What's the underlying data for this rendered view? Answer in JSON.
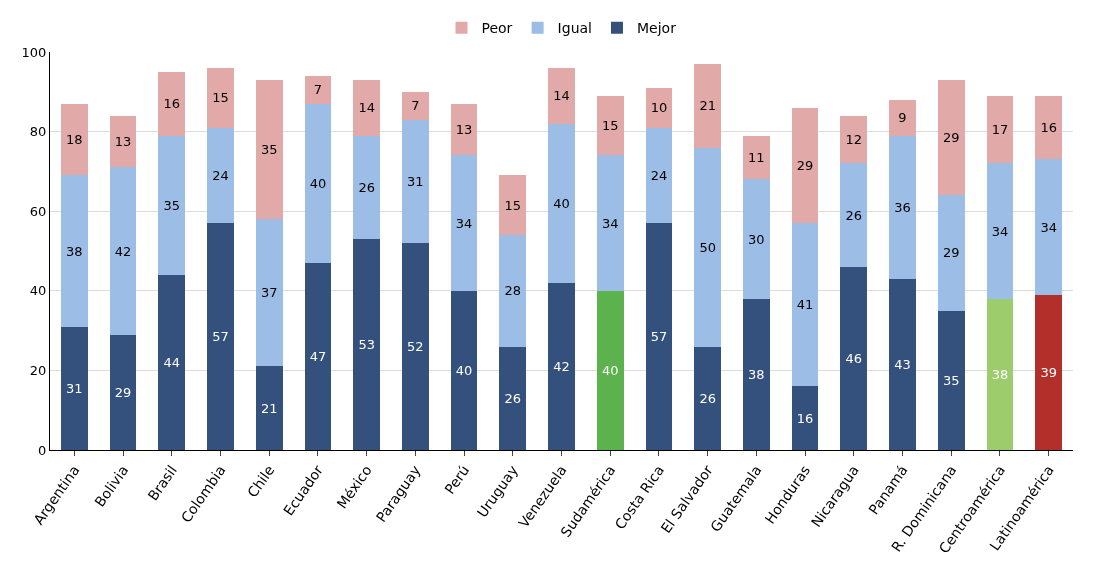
{
  "chart_data": {
    "type": "bar",
    "stacked": true,
    "data_labels": true,
    "grid": "y",
    "legend": "top",
    "ylim": [
      0,
      100
    ],
    "yticks": [
      0,
      20,
      40,
      60,
      80,
      100
    ],
    "categories": [
      "Argentina",
      "Bolivia",
      "Brasil",
      "Colombia",
      "Chile",
      "Ecuador",
      "México",
      "Paraguay",
      "Perú",
      "Uruguay",
      "Venezuela",
      "Sudamérica",
      "Costa Rica",
      "El Salvador",
      "Guatemala",
      "Honduras",
      "Nicaragua",
      "Panamá",
      "R. Dominicana",
      "Centroamérica",
      "Latinoamérica"
    ],
    "series": [
      {
        "name": "Mejor",
        "color": "#34507c",
        "colors": [
          "#34507c",
          "#34507c",
          "#34507c",
          "#34507c",
          "#34507c",
          "#34507c",
          "#34507c",
          "#34507c",
          "#34507c",
          "#34507c",
          "#34507c",
          "#5cb34d",
          "#34507c",
          "#34507c",
          "#34507c",
          "#34507c",
          "#34507c",
          "#34507c",
          "#34507c",
          "#9ccc6c",
          "#b3302a"
        ],
        "values": [
          31,
          29,
          44,
          57,
          21,
          47,
          53,
          52,
          40,
          26,
          42,
          40,
          57,
          26,
          38,
          16,
          46,
          43,
          35,
          38,
          39
        ]
      },
      {
        "name": "Igual",
        "color": "#9cbde6",
        "values": [
          38,
          42,
          35,
          24,
          37,
          40,
          26,
          31,
          34,
          28,
          40,
          34,
          24,
          50,
          30,
          41,
          26,
          36,
          29,
          34,
          34
        ]
      },
      {
        "name": "Peor",
        "color": "#e2a9a9",
        "values": [
          18,
          13,
          16,
          15,
          35,
          7,
          14,
          7,
          13,
          15,
          14,
          15,
          10,
          21,
          11,
          29,
          12,
          9,
          29,
          17,
          16
        ]
      }
    ]
  }
}
